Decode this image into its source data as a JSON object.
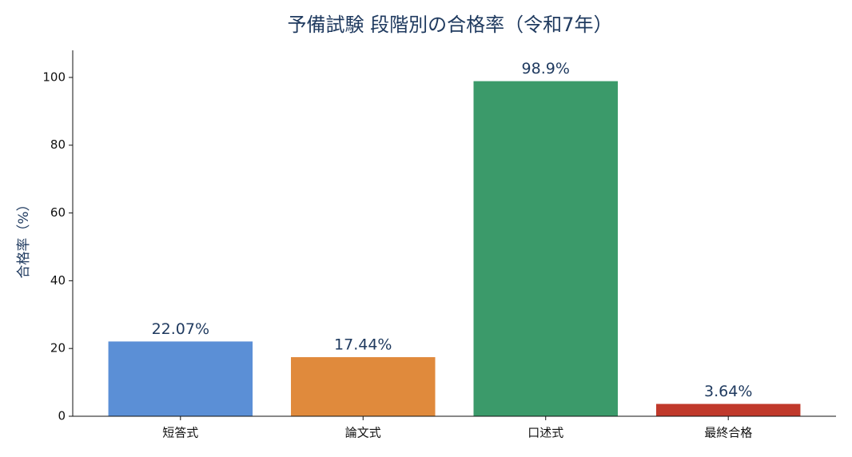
{
  "chart_data": {
    "type": "bar",
    "title": "予備試験 段階別の合格率（令和7年）",
    "ylabel": "合格率（%）",
    "categories": [
      "短答式",
      "論文式",
      "口述式",
      "最終合格"
    ],
    "values": [
      22.07,
      17.44,
      98.9,
      3.64
    ],
    "value_labels": [
      "22.07%",
      "17.44%",
      "98.9%",
      "3.64%"
    ],
    "colors": [
      "#5b8fd6",
      "#e08a3c",
      "#3b9a6a",
      "#c0392b"
    ],
    "ylim": [
      0,
      108
    ],
    "yticks": [
      0,
      20,
      40,
      60,
      80,
      100
    ],
    "grid": false
  }
}
